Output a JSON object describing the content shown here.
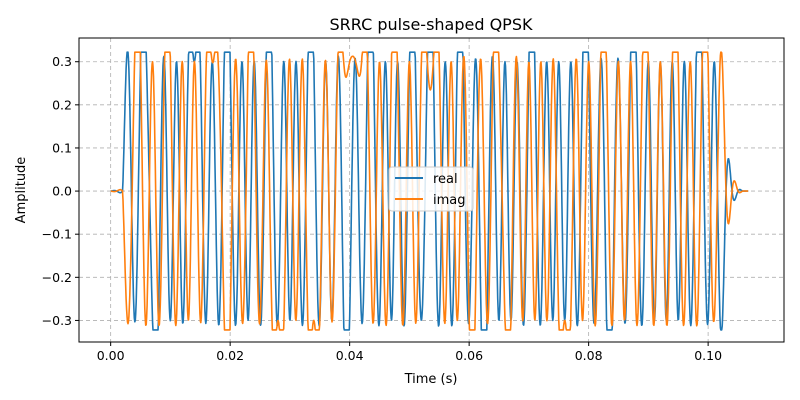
{
  "chart_data": {
    "type": "line",
    "title": "SRRC pulse-shaped QPSK",
    "xlabel": "Time (s)",
    "ylabel": "Amplitude",
    "xlim": [
      -0.0053,
      0.1127
    ],
    "ylim": [
      -0.35,
      0.355
    ],
    "xticks": [
      0.0,
      0.02,
      0.04,
      0.06,
      0.08,
      0.1
    ],
    "xtick_labels": [
      "0.00",
      "0.02",
      "0.04",
      "0.06",
      "0.08",
      "0.10"
    ],
    "yticks": [
      -0.3,
      -0.2,
      -0.1,
      0.0,
      0.1,
      0.2,
      0.3
    ],
    "ytick_labels": [
      "−0.3",
      "−0.2",
      "−0.1",
      "0.0",
      "0.1",
      "0.2",
      "0.3"
    ],
    "grid": true,
    "legend_position": "center",
    "series": [
      {
        "name": "real",
        "color": "#1f77b4",
        "symbols": [
          1,
          -1,
          1,
          1,
          -1,
          -1,
          1,
          -1,
          1,
          -1,
          1,
          1,
          1,
          -1,
          1,
          -1,
          1,
          1,
          -1,
          1,
          -1,
          1,
          -1,
          1,
          1,
          -1,
          1,
          -1,
          1,
          -1,
          1,
          1,
          -1,
          1,
          -1,
          1,
          -1,
          -1,
          1,
          -1,
          1,
          1,
          -1,
          1,
          -1,
          1,
          -1,
          1,
          1,
          -1,
          1,
          1,
          -1,
          1,
          -1,
          1,
          1,
          -1,
          1,
          -1,
          -1,
          1,
          -1,
          1,
          -1,
          1,
          -1,
          1,
          1,
          -1,
          1,
          -1,
          1,
          -1,
          1,
          -1,
          1,
          1,
          -1,
          1,
          -1,
          -1,
          1,
          -1,
          1,
          1,
          -1,
          1,
          -1,
          1,
          -1,
          1,
          -1,
          1,
          -1,
          1,
          1,
          -1,
          1,
          -1
        ]
      },
      {
        "name": "imag",
        "color": "#ff7f0e",
        "symbols": [
          -1,
          1,
          1,
          -1,
          1,
          -1,
          1,
          1,
          -1,
          1,
          -1,
          1,
          -1,
          1,
          1,
          1,
          -1,
          -1,
          1,
          -1,
          1,
          1,
          -1,
          1,
          -1,
          -1,
          -1,
          1,
          -1,
          1,
          -1,
          -1,
          -1,
          1,
          -1,
          1,
          1,
          1,
          1,
          1,
          1,
          -1,
          1,
          -1,
          1,
          1,
          -1,
          1,
          -1,
          1,
          1,
          1,
          1,
          -1,
          1,
          -1,
          1,
          -1,
          -1,
          1,
          -1,
          1,
          1,
          -1,
          -1,
          1,
          -1,
          1,
          -1,
          1,
          -1,
          1,
          -1,
          -1,
          -1,
          1,
          -1,
          1,
          -1,
          1,
          1,
          -1,
          1,
          -1,
          1,
          -1,
          1,
          1,
          -1,
          1,
          -1,
          1,
          1,
          -1,
          1,
          -1,
          1,
          1,
          -1,
          1
        ]
      }
    ],
    "signal": {
      "symbol_period_s": 0.001,
      "amplitude": 0.3,
      "duration_s": 0.1067
    }
  }
}
